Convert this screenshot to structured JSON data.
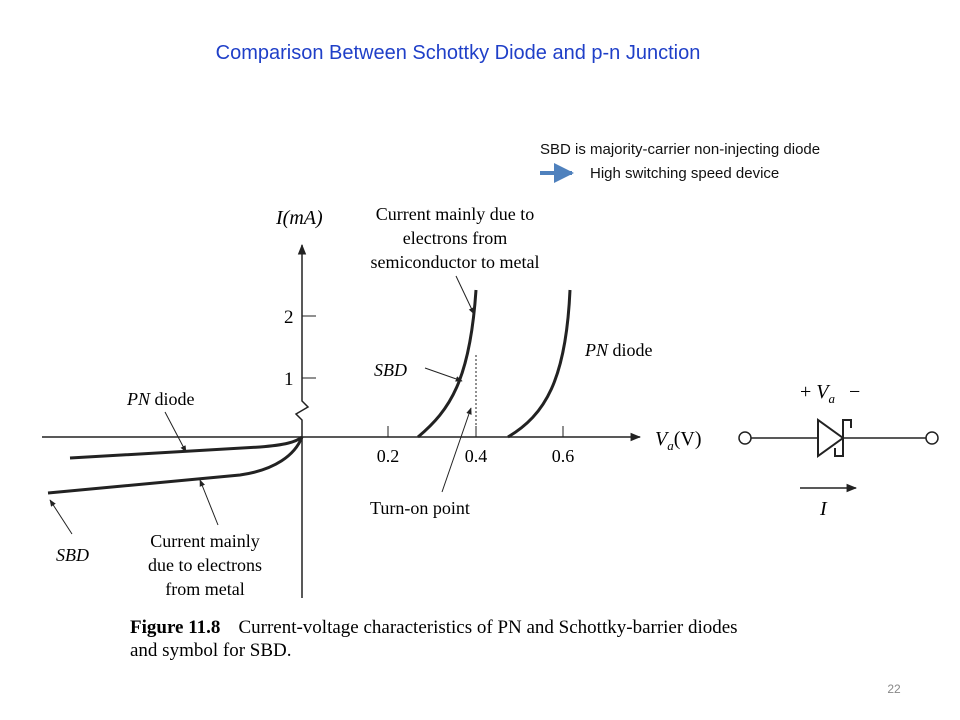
{
  "title": "Comparison Between Schottky Diode and p-n Junction",
  "note": {
    "line1": "SBD is majority-carrier non-injecting diode",
    "line2": "High switching speed device"
  },
  "figure": {
    "y_axis_label": "I(mA)",
    "x_axis_label": {
      "symbol": "V",
      "subscript": "a",
      "unit": "(V)"
    },
    "y_ticks": [
      "1",
      "2"
    ],
    "x_ticks": [
      "0.2",
      "0.4",
      "0.6"
    ],
    "annotations": {
      "sbd_forward_cause": [
        "Current mainly due to",
        "electrons from",
        "semiconductor to metal"
      ],
      "sbd_forward": "SBD",
      "pn_forward": {
        "symbol": "PN",
        "text": "diode"
      },
      "pn_reverse": {
        "symbol": "PN",
        "text": "diode"
      },
      "sbd_reverse": "SBD",
      "sbd_reverse_cause": [
        "Current mainly",
        "due to electrons",
        "from metal"
      ],
      "turn_on": "Turn-on point"
    },
    "symbol": {
      "plus": "+",
      "voltage": "V",
      "subscript": "a",
      "minus": "−",
      "current": "I"
    },
    "caption": {
      "label": "Figure 11.8",
      "text": "Current-voltage characteristics of PN and Schottky-barrier diodes",
      "text2": "and symbol for SBD."
    }
  },
  "page_number": "22"
}
